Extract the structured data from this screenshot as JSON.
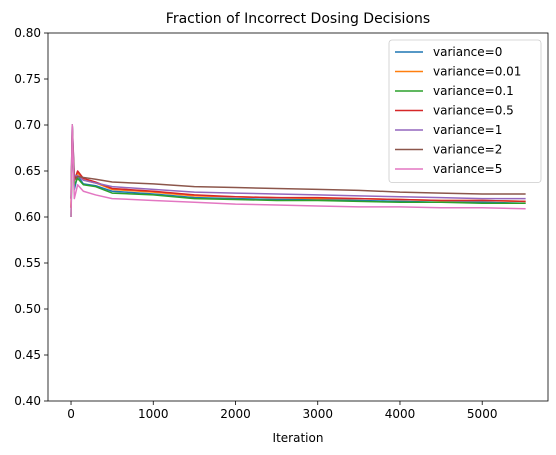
{
  "chart_data": {
    "type": "line",
    "title": "Fraction of Incorrect Dosing Decisions",
    "xlabel": "Iteration",
    "ylabel": "",
    "xlim": [
      -280,
      5800
    ],
    "ylim": [
      0.4,
      0.8
    ],
    "xticks": [
      0,
      1000,
      2000,
      3000,
      4000,
      5000
    ],
    "yticks": [
      0.4,
      0.45,
      0.5,
      0.55,
      0.6,
      0.65,
      0.7,
      0.75,
      0.8
    ],
    "grid": false,
    "legend_position": "top-right",
    "series": [
      {
        "name": "variance=0",
        "color": "#1f77b4",
        "x": [
          0,
          15,
          40,
          80,
          150,
          300,
          500,
          1000,
          1500,
          2000,
          2500,
          3000,
          3500,
          4000,
          4500,
          5000,
          5528
        ],
        "y": [
          0.6,
          0.7,
          0.63,
          0.645,
          0.636,
          0.634,
          0.628,
          0.625,
          0.621,
          0.62,
          0.619,
          0.619,
          0.618,
          0.617,
          0.616,
          0.616,
          0.615
        ]
      },
      {
        "name": "variance=0.01",
        "color": "#ff7f0e",
        "x": [
          0,
          15,
          40,
          80,
          150,
          300,
          500,
          1000,
          1500,
          2000,
          2500,
          3000,
          3500,
          4000,
          4500,
          5000,
          5528
        ],
        "y": [
          0.61,
          0.69,
          0.64,
          0.648,
          0.64,
          0.637,
          0.63,
          0.627,
          0.623,
          0.622,
          0.621,
          0.62,
          0.62,
          0.619,
          0.618,
          0.618,
          0.617
        ]
      },
      {
        "name": "variance=0.1",
        "color": "#2ca02c",
        "x": [
          0,
          15,
          40,
          80,
          150,
          300,
          500,
          1000,
          1500,
          2000,
          2500,
          3000,
          3500,
          4000,
          4500,
          5000,
          5528
        ],
        "y": [
          0.6,
          0.68,
          0.635,
          0.642,
          0.635,
          0.633,
          0.626,
          0.624,
          0.62,
          0.619,
          0.618,
          0.618,
          0.617,
          0.616,
          0.616,
          0.615,
          0.615
        ]
      },
      {
        "name": "variance=0.5",
        "color": "#d62728",
        "x": [
          0,
          15,
          40,
          80,
          150,
          300,
          500,
          1000,
          1500,
          2000,
          2500,
          3000,
          3500,
          4000,
          4500,
          5000,
          5528
        ],
        "y": [
          0.61,
          0.69,
          0.64,
          0.65,
          0.642,
          0.638,
          0.631,
          0.628,
          0.624,
          0.622,
          0.621,
          0.621,
          0.62,
          0.619,
          0.618,
          0.618,
          0.617
        ]
      },
      {
        "name": "variance=1",
        "color": "#9467bd",
        "x": [
          0,
          15,
          40,
          80,
          150,
          300,
          500,
          1000,
          1500,
          2000,
          2500,
          3000,
          3500,
          4000,
          4500,
          5000,
          5528
        ],
        "y": [
          0.62,
          0.7,
          0.645,
          0.645,
          0.64,
          0.637,
          0.633,
          0.63,
          0.627,
          0.626,
          0.625,
          0.624,
          0.623,
          0.622,
          0.621,
          0.62,
          0.62
        ]
      },
      {
        "name": "variance=2",
        "color": "#8c564b",
        "x": [
          0,
          15,
          40,
          80,
          150,
          300,
          500,
          1000,
          1500,
          2000,
          2500,
          3000,
          3500,
          4000,
          4500,
          5000,
          5528
        ],
        "y": [
          0.62,
          0.7,
          0.64,
          0.644,
          0.643,
          0.641,
          0.638,
          0.636,
          0.633,
          0.632,
          0.631,
          0.63,
          0.629,
          0.627,
          0.626,
          0.625,
          0.625
        ]
      },
      {
        "name": "variance=5",
        "color": "#e377c2",
        "x": [
          0,
          15,
          40,
          80,
          150,
          300,
          500,
          1000,
          1500,
          2000,
          2500,
          3000,
          3500,
          4000,
          4500,
          5000,
          5528
        ],
        "y": [
          0.6,
          0.7,
          0.62,
          0.635,
          0.628,
          0.624,
          0.62,
          0.618,
          0.616,
          0.614,
          0.613,
          0.612,
          0.611,
          0.611,
          0.61,
          0.61,
          0.609
        ]
      }
    ]
  }
}
